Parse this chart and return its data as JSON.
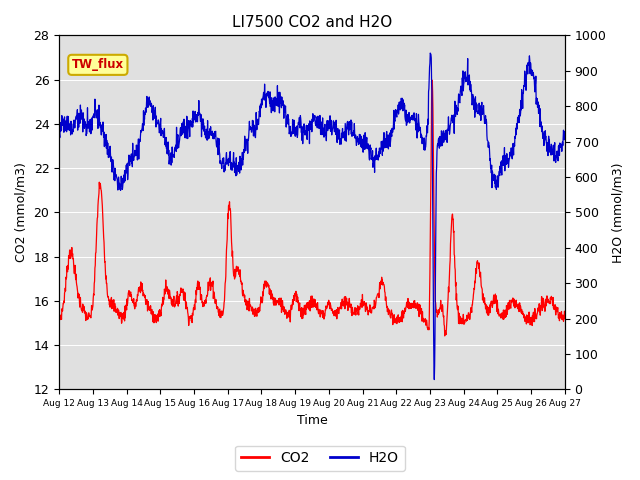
{
  "title": "LI7500 CO2 and H2O",
  "xlabel": "Time",
  "ylabel_left": "CO2 (mmol/m3)",
  "ylabel_right": "H2O (mmol/m3)",
  "ylim_left": [
    12,
    28
  ],
  "ylim_right": [
    0,
    1000
  ],
  "xlim": [
    0,
    360
  ],
  "x_tick_labels": [
    "Aug 12",
    "Aug 13",
    "Aug 14",
    "Aug 15",
    "Aug 16",
    "Aug 17",
    "Aug 18",
    "Aug 19",
    "Aug 20",
    "Aug 21",
    "Aug 22",
    "Aug 23",
    "Aug 24",
    "Aug 25",
    "Aug 26",
    "Aug 27"
  ],
  "x_tick_positions": [
    0,
    24,
    48,
    72,
    96,
    120,
    144,
    168,
    192,
    216,
    240,
    264,
    288,
    312,
    336,
    360
  ],
  "bg_color": "#e0e0e0",
  "fig_bg_color": "#ffffff",
  "co2_color": "#ff0000",
  "h2o_color": "#0000cc",
  "legend_label_co2": "CO2",
  "legend_label_h2o": "H2O",
  "annotation_text": "TW_flux",
  "annotation_bbox_facecolor": "#ffff99",
  "annotation_bbox_edgecolor": "#ccaa00",
  "annotation_text_color": "#cc0000",
  "yticks_left": [
    12,
    14,
    16,
    18,
    20,
    22,
    24,
    26,
    28
  ],
  "yticks_right": [
    0,
    100,
    200,
    300,
    400,
    500,
    600,
    700,
    800,
    900,
    1000
  ]
}
